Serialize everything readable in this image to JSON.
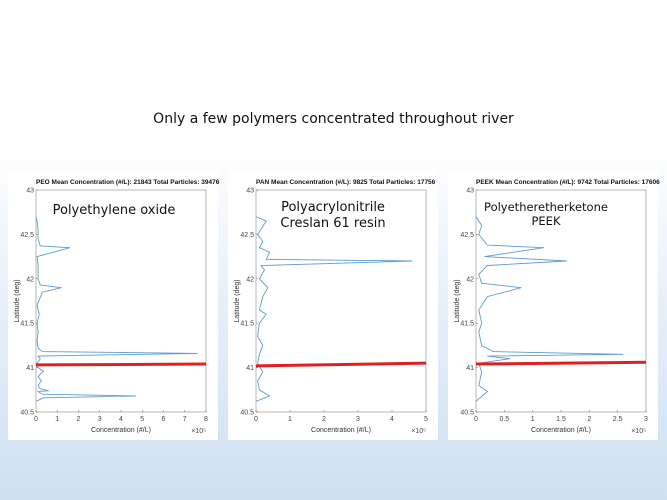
{
  "slide": {
    "title": "Only a few polymers concentrated throughout river"
  },
  "chart_data": [
    {
      "type": "line",
      "title": "PEO   Mean Concentration (#/L): 21843   Total Particles: 39476",
      "overlay": [
        "Polyethylene oxide"
      ],
      "xlabel": "Concentration (#/L)",
      "ylabel": "Latitude (deg)",
      "x_exponent": "×10⁵",
      "xlim": [
        0,
        8
      ],
      "ylim": [
        40.5,
        43
      ],
      "xticks": [
        "0",
        "1",
        "2",
        "3",
        "4",
        "5",
        "6",
        "7",
        "8"
      ],
      "yticks": [
        "40.5",
        "41",
        "41.5",
        "42",
        "42.5",
        "43"
      ],
      "series": [
        {
          "color": "#5b9bd5",
          "points": [
            [
              0,
              40.62
            ],
            [
              0.35,
              40.66
            ],
            [
              4.7,
              40.68
            ],
            [
              0.3,
              40.7
            ],
            [
              0.1,
              40.73
            ],
            [
              0.6,
              40.74
            ],
            [
              0.2,
              40.76
            ],
            [
              0.1,
              40.8
            ],
            [
              0.25,
              40.85
            ],
            [
              0.1,
              40.9
            ],
            [
              0.35,
              40.96
            ],
            [
              0.1,
              41.0
            ],
            [
              0.05,
              41.05
            ],
            [
              0.2,
              41.1
            ],
            [
              0.1,
              41.13
            ],
            [
              7.6,
              41.16
            ],
            [
              0.3,
              41.18
            ],
            [
              0.1,
              41.22
            ],
            [
              0.05,
              41.3
            ],
            [
              0.1,
              41.4
            ],
            [
              0.05,
              41.5
            ],
            [
              0.15,
              41.6
            ],
            [
              0.05,
              41.7
            ],
            [
              0.3,
              41.85
            ],
            [
              1.2,
              41.9
            ],
            [
              0.2,
              41.93
            ],
            [
              0.1,
              42.0
            ],
            [
              0.1,
              42.15
            ],
            [
              0.05,
              42.25
            ],
            [
              1.6,
              42.35
            ],
            [
              0.2,
              42.37
            ],
            [
              0.1,
              42.45
            ],
            [
              0.1,
              42.55
            ],
            [
              0.05,
              42.65
            ],
            [
              0,
              42.7
            ]
          ]
        }
      ],
      "reference_line": {
        "color": "#e02020",
        "points": [
          [
            0,
            41.03
          ],
          [
            8,
            41.04
          ]
        ]
      }
    },
    {
      "type": "line",
      "title": "PAN   Mean Concentration (#/L): 9825   Total Particles: 17756",
      "overlay": [
        "Polyacrylonitrile",
        "Creslan 61 resin"
      ],
      "xlabel": "Concentration (#/L)",
      "ylabel": "Latitude (deg)",
      "x_exponent": "×10⁵",
      "xlim": [
        0,
        5
      ],
      "ylim": [
        40.5,
        43
      ],
      "xticks": [
        "0",
        "1",
        "2",
        "3",
        "4",
        "5"
      ],
      "yticks": [
        "40.5",
        "41",
        "41.5",
        "42",
        "42.5",
        "43"
      ],
      "series": [
        {
          "color": "#5b9bd5",
          "points": [
            [
              0,
              40.62
            ],
            [
              0.4,
              40.68
            ],
            [
              0.1,
              40.75
            ],
            [
              0.05,
              40.85
            ],
            [
              0.2,
              40.95
            ],
            [
              0.05,
              41.05
            ],
            [
              0.1,
              41.15
            ],
            [
              0.2,
              41.25
            ],
            [
              0.05,
              41.35
            ],
            [
              0.1,
              41.5
            ],
            [
              0.3,
              41.6
            ],
            [
              0.1,
              41.65
            ],
            [
              0.2,
              41.8
            ],
            [
              0.35,
              41.9
            ],
            [
              0.1,
              42.0
            ],
            [
              0.25,
              42.1
            ],
            [
              0.15,
              42.15
            ],
            [
              4.6,
              42.2
            ],
            [
              0.3,
              42.22
            ],
            [
              0.4,
              42.3
            ],
            [
              0.1,
              42.35
            ],
            [
              0.2,
              42.42
            ],
            [
              0.05,
              42.5
            ],
            [
              0.3,
              42.65
            ],
            [
              0,
              42.7
            ]
          ]
        }
      ],
      "reference_line": {
        "color": "#e02020",
        "points": [
          [
            0,
            41.02
          ],
          [
            5,
            41.05
          ]
        ]
      }
    },
    {
      "type": "line",
      "title": "PEEK   Mean Concentration (#/L): 9742   Total Particles: 17606",
      "overlay": [
        "Polyetheretherketone",
        "PEEK"
      ],
      "xlabel": "Concentration (#/L)",
      "ylabel": "Latitude (deg)",
      "x_exponent": "×10⁵",
      "xlim": [
        0,
        3
      ],
      "ylim": [
        40.5,
        43
      ],
      "xticks": [
        "0",
        "0.5",
        "1",
        "1.5",
        "2",
        "2.5",
        "3"
      ],
      "yticks": [
        "40.5",
        "41",
        "41.5",
        "42",
        "42.5",
        "43"
      ],
      "series": [
        {
          "color": "#5b9bd5",
          "points": [
            [
              0,
              40.62
            ],
            [
              0.2,
              40.73
            ],
            [
              0.05,
              40.8
            ],
            [
              0.1,
              40.95
            ],
            [
              0.05,
              41.05
            ],
            [
              0.6,
              41.1
            ],
            [
              0.2,
              41.13
            ],
            [
              2.6,
              41.15
            ],
            [
              0.3,
              41.18
            ],
            [
              0.1,
              41.25
            ],
            [
              0.05,
              41.4
            ],
            [
              0.1,
              41.5
            ],
            [
              0.05,
              41.65
            ],
            [
              0.2,
              41.8
            ],
            [
              0.8,
              41.9
            ],
            [
              0.1,
              41.95
            ],
            [
              0.05,
              42.05
            ],
            [
              0.2,
              42.15
            ],
            [
              1.6,
              42.2
            ],
            [
              0.15,
              42.25
            ],
            [
              1.2,
              42.35
            ],
            [
              0.2,
              42.38
            ],
            [
              0.05,
              42.5
            ],
            [
              0.1,
              42.6
            ],
            [
              0,
              42.7
            ]
          ]
        }
      ],
      "reference_line": {
        "color": "#e02020",
        "points": [
          [
            0,
            41.04
          ],
          [
            3,
            41.06
          ]
        ]
      }
    }
  ]
}
